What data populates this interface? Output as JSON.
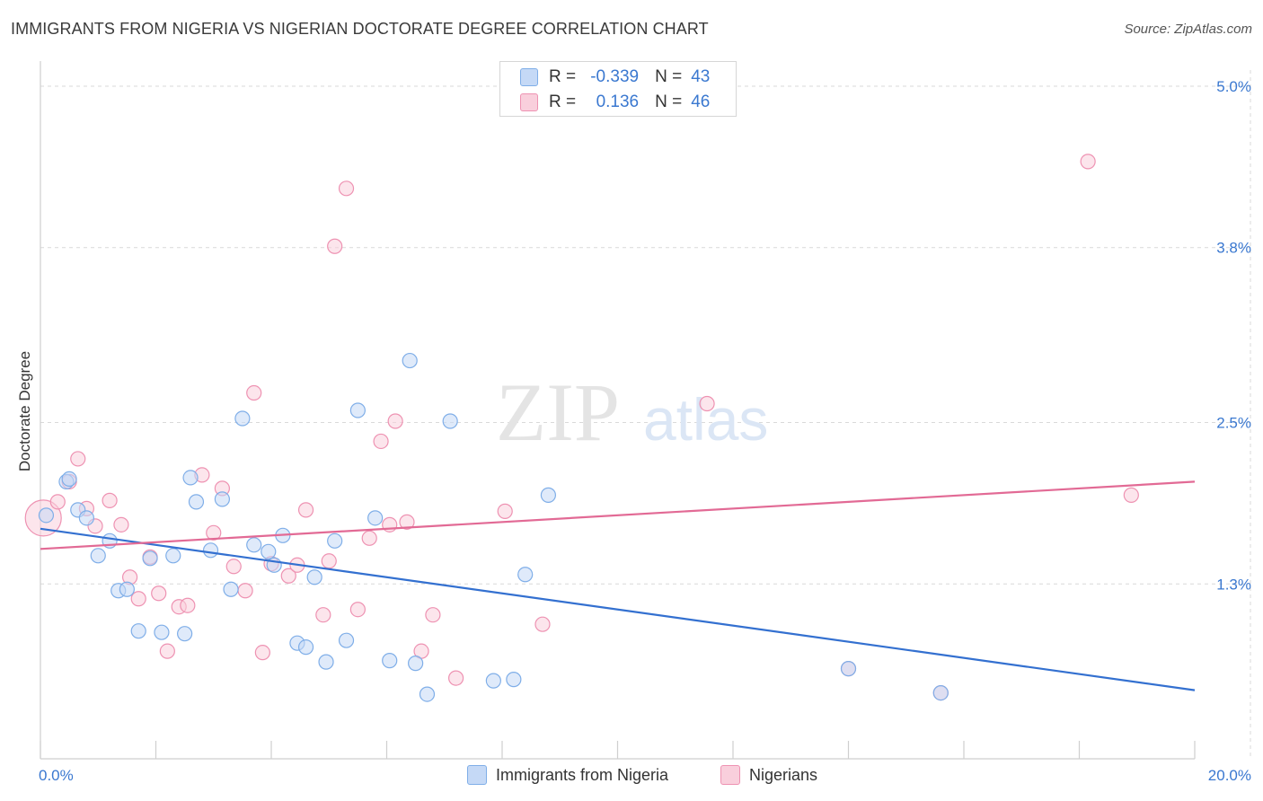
{
  "header": {
    "title": "IMMIGRANTS FROM NIGERIA VS NIGERIAN DOCTORATE DEGREE CORRELATION CHART",
    "source": "Source: ZipAtlas.com"
  },
  "watermark": {
    "zip": "ZIP",
    "atlas": "atlas"
  },
  "legend": {
    "rows": [
      {
        "r_label": "R =",
        "r_value": "-0.339",
        "n_label": "N =",
        "n_value": "43"
      },
      {
        "r_label": "R =",
        "r_value": "0.136",
        "n_label": "N =",
        "n_value": "46"
      }
    ]
  },
  "bottom_legend": {
    "series1": "Immigrants from Nigeria",
    "series2": "Nigerians"
  },
  "colors": {
    "blue_fill": "#c5d9f6",
    "blue_stroke": "#7faee8",
    "blue_line": "#3370d0",
    "pink_fill": "#f9cfdc",
    "pink_stroke": "#ee92b2",
    "pink_line": "#e26a95",
    "tick_label": "#3a78d0",
    "grid": "#d9d9d9"
  },
  "chart_data": {
    "type": "scatter",
    "title": "IMMIGRANTS FROM NIGERIA VS NIGERIAN DOCTORATE DEGREE CORRELATION CHART",
    "xlabel": "",
    "ylabel": "Doctorate Degree",
    "xlim": [
      0,
      20
    ],
    "ylim": [
      0,
      5.0
    ],
    "x_tick_labels": [
      "0.0%",
      "20.0%"
    ],
    "y_ticks": [
      1.3,
      2.5,
      3.8,
      5.0
    ],
    "y_tick_labels": [
      "1.3%",
      "2.5%",
      "3.8%",
      "5.0%"
    ],
    "grid": "horizontal dashed",
    "legend_position": "top-center",
    "series": [
      {
        "name": "Immigrants from Nigeria",
        "r": -0.339,
        "n": 43,
        "trend": {
          "x": [
            0,
            20
          ],
          "y": [
            1.71,
            0.51
          ]
        },
        "points": [
          [
            0.1,
            1.81
          ],
          [
            0.45,
            2.06
          ],
          [
            0.5,
            2.08
          ],
          [
            0.65,
            1.85
          ],
          [
            0.8,
            1.79
          ],
          [
            1.0,
            1.51
          ],
          [
            1.2,
            1.62
          ],
          [
            1.35,
            1.25
          ],
          [
            1.5,
            1.26
          ],
          [
            1.7,
            0.95
          ],
          [
            1.9,
            1.49
          ],
          [
            2.1,
            0.94
          ],
          [
            2.3,
            1.51
          ],
          [
            2.5,
            0.93
          ],
          [
            2.6,
            2.09
          ],
          [
            2.7,
            1.91
          ],
          [
            2.95,
            1.55
          ],
          [
            3.15,
            1.93
          ],
          [
            3.3,
            1.26
          ],
          [
            3.5,
            2.53
          ],
          [
            3.7,
            1.59
          ],
          [
            3.95,
            1.54
          ],
          [
            4.05,
            1.44
          ],
          [
            4.2,
            1.66
          ],
          [
            4.45,
            0.86
          ],
          [
            4.6,
            0.83
          ],
          [
            4.75,
            1.35
          ],
          [
            4.95,
            0.72
          ],
          [
            5.1,
            1.62
          ],
          [
            5.3,
            0.88
          ],
          [
            5.5,
            2.59
          ],
          [
            5.8,
            1.79
          ],
          [
            6.05,
            0.73
          ],
          [
            6.4,
            2.96
          ],
          [
            6.5,
            0.71
          ],
          [
            6.7,
            0.48
          ],
          [
            7.1,
            2.51
          ],
          [
            7.85,
            0.58
          ],
          [
            8.2,
            0.59
          ],
          [
            8.4,
            1.37
          ],
          [
            8.8,
            1.96
          ],
          [
            14.0,
            0.67
          ],
          [
            15.6,
            0.49
          ]
        ]
      },
      {
        "name": "Nigerians",
        "r": 0.136,
        "n": 46,
        "trend": {
          "x": [
            0,
            20
          ],
          "y": [
            1.56,
            2.06
          ]
        },
        "points": [
          [
            0.05,
            1.79
          ],
          [
            0.3,
            1.91
          ],
          [
            0.5,
            2.06
          ],
          [
            0.65,
            2.23
          ],
          [
            0.8,
            1.86
          ],
          [
            0.95,
            1.73
          ],
          [
            1.2,
            1.92
          ],
          [
            1.4,
            1.74
          ],
          [
            1.55,
            1.35
          ],
          [
            1.7,
            1.19
          ],
          [
            1.9,
            1.5
          ],
          [
            2.05,
            1.23
          ],
          [
            2.2,
            0.8
          ],
          [
            2.4,
            1.13
          ],
          [
            2.55,
            1.14
          ],
          [
            2.8,
            2.11
          ],
          [
            3.0,
            1.68
          ],
          [
            3.15,
            2.01
          ],
          [
            3.35,
            1.43
          ],
          [
            3.55,
            1.25
          ],
          [
            3.7,
            2.72
          ],
          [
            3.85,
            0.79
          ],
          [
            4.0,
            1.45
          ],
          [
            4.3,
            1.36
          ],
          [
            4.45,
            1.44
          ],
          [
            4.6,
            1.85
          ],
          [
            4.9,
            1.07
          ],
          [
            5.0,
            1.47
          ],
          [
            5.1,
            3.81
          ],
          [
            5.3,
            4.24
          ],
          [
            5.5,
            1.11
          ],
          [
            5.7,
            1.64
          ],
          [
            5.9,
            2.36
          ],
          [
            6.05,
            1.74
          ],
          [
            6.15,
            2.51
          ],
          [
            6.35,
            1.76
          ],
          [
            6.6,
            0.8
          ],
          [
            6.8,
            1.07
          ],
          [
            7.2,
            0.6
          ],
          [
            8.05,
            1.84
          ],
          [
            8.7,
            1.0
          ],
          [
            11.55,
            2.64
          ],
          [
            14.0,
            0.67
          ],
          [
            15.6,
            0.49
          ],
          [
            18.15,
            4.44
          ],
          [
            18.9,
            1.96
          ]
        ]
      }
    ]
  }
}
